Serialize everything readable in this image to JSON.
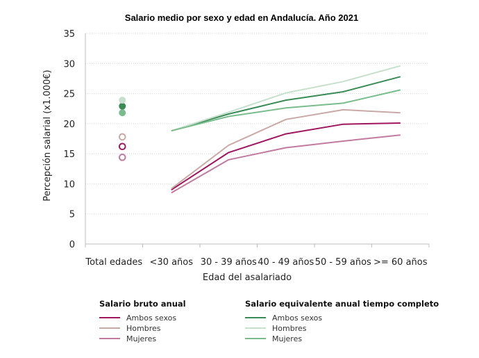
{
  "chart_data": {
    "type": "line",
    "title": "Salario medio por sexo y edad en Andalucía. Año 2021",
    "xlabel": "Edad del asalariado",
    "ylabel": "Percepción salarial (x1.000€)",
    "categories": [
      "Total edades",
      "<30 años",
      "30 - 39 años",
      "40 - 49 años",
      "50 - 59 años",
      ">= 60 años"
    ],
    "yticks": [
      "0",
      "5",
      "10",
      "15",
      "20",
      "25",
      "30",
      "35"
    ],
    "ylim": [
      0,
      35
    ],
    "grid": true,
    "legend_groups": [
      {
        "title": "Salario bruto anual",
        "series": [
          {
            "name": "Ambos sexos",
            "color": "#a0175e",
            "total": 16.2,
            "values": [
              9.0,
              15.2,
              18.3,
              19.9,
              20.1
            ]
          },
          {
            "name": "Hombres",
            "color": "#c9a9a5",
            "total": 17.8,
            "values": [
              9.2,
              16.4,
              20.7,
              22.3,
              21.8
            ]
          },
          {
            "name": "Mujeres",
            "color": "#c07b9e",
            "total": 14.4,
            "values": [
              8.5,
              14.0,
              16.0,
              17.1,
              18.1
            ]
          }
        ]
      },
      {
        "title": "Salario equivalente anual tiempo completo",
        "series": [
          {
            "name": "Ambos sexos",
            "color": "#3a8c56",
            "total": 22.9,
            "values": [
              18.8,
              21.6,
              23.9,
              25.3,
              27.8
            ]
          },
          {
            "name": "Hombres",
            "color": "#c6e0cd",
            "total": 23.9,
            "values": [
              18.8,
              21.9,
              25.1,
              27.0,
              29.6
            ]
          },
          {
            "name": "Mujeres",
            "color": "#7abd8c",
            "total": 21.8,
            "values": [
              18.8,
              21.2,
              22.6,
              23.4,
              25.6
            ]
          }
        ]
      }
    ]
  }
}
